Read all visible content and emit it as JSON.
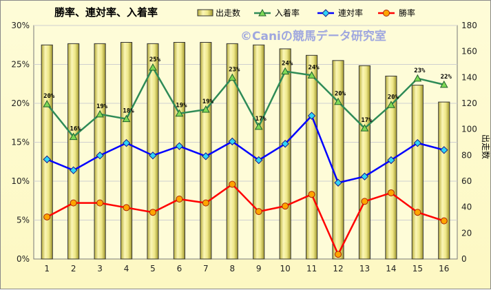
{
  "chart_data": {
    "type": "bar",
    "title": "勝率、連対率、入着率",
    "watermark": "©Caniの競馬データ研究室",
    "categories": [
      "1",
      "2",
      "3",
      "4",
      "5",
      "6",
      "7",
      "8",
      "9",
      "10",
      "11",
      "12",
      "13",
      "14",
      "15",
      "16"
    ],
    "ylabel_right": "出走数",
    "left_axis": {
      "ylim": [
        0,
        30
      ],
      "ticks": [
        "0%",
        "5%",
        "10%",
        "15%",
        "20%",
        "25%",
        "30%"
      ],
      "tick_values": [
        0,
        5,
        10,
        15,
        20,
        25,
        30
      ]
    },
    "right_axis": {
      "ylim": [
        0,
        180
      ],
      "ticks": [
        "0",
        "20",
        "40",
        "60",
        "80",
        "100",
        "120",
        "140",
        "160",
        "180"
      ],
      "tick_values": [
        0,
        20,
        40,
        60,
        80,
        100,
        120,
        140,
        160,
        180
      ]
    },
    "series": [
      {
        "name": "出走数",
        "kind": "bar",
        "axis": "right",
        "color": "#e8e07a",
        "values": [
          165,
          166,
          166,
          167,
          166,
          167,
          167,
          166,
          165,
          162,
          157,
          153,
          149,
          141,
          134,
          121
        ]
      },
      {
        "name": "入着率",
        "kind": "line",
        "axis": "left",
        "color": "#2e8b57",
        "marker": "triangle",
        "values": [
          19.9,
          15.7,
          18.6,
          18.0,
          24.6,
          18.7,
          19.2,
          23.3,
          17.0,
          24.1,
          23.6,
          20.2,
          16.8,
          19.8,
          23.2,
          22.4
        ],
        "data_labels": [
          "20%",
          "16%",
          "19%",
          "18%",
          "25%",
          "19%",
          "19%",
          "23%",
          "17%",
          "24%",
          "24%",
          "20%",
          "17%",
          "20%",
          "23%",
          "22%"
        ]
      },
      {
        "name": "連対率",
        "kind": "line",
        "axis": "left",
        "color": "#0000ff",
        "marker": "diamond",
        "values": [
          12.8,
          11.4,
          13.3,
          14.9,
          13.3,
          14.5,
          13.2,
          15.1,
          12.7,
          14.8,
          18.4,
          9.8,
          10.6,
          12.7,
          14.9,
          14.0
        ]
      },
      {
        "name": "勝率",
        "kind": "line",
        "axis": "left",
        "color": "#ff0000",
        "marker": "circle",
        "values": [
          5.4,
          7.2,
          7.2,
          6.6,
          6.0,
          7.7,
          7.2,
          9.6,
          6.1,
          6.8,
          8.3,
          0.6,
          7.4,
          8.5,
          6.0,
          4.9
        ]
      }
    ],
    "legend": [
      "出走数",
      "入着率",
      "連対率",
      "勝率"
    ],
    "legend_position": "top",
    "grid": true,
    "colors": {
      "background": "#fefcd8",
      "grid": "#cfcfcf",
      "bar_fill": "#e8e07a",
      "bar_stroke": "#333333"
    }
  }
}
